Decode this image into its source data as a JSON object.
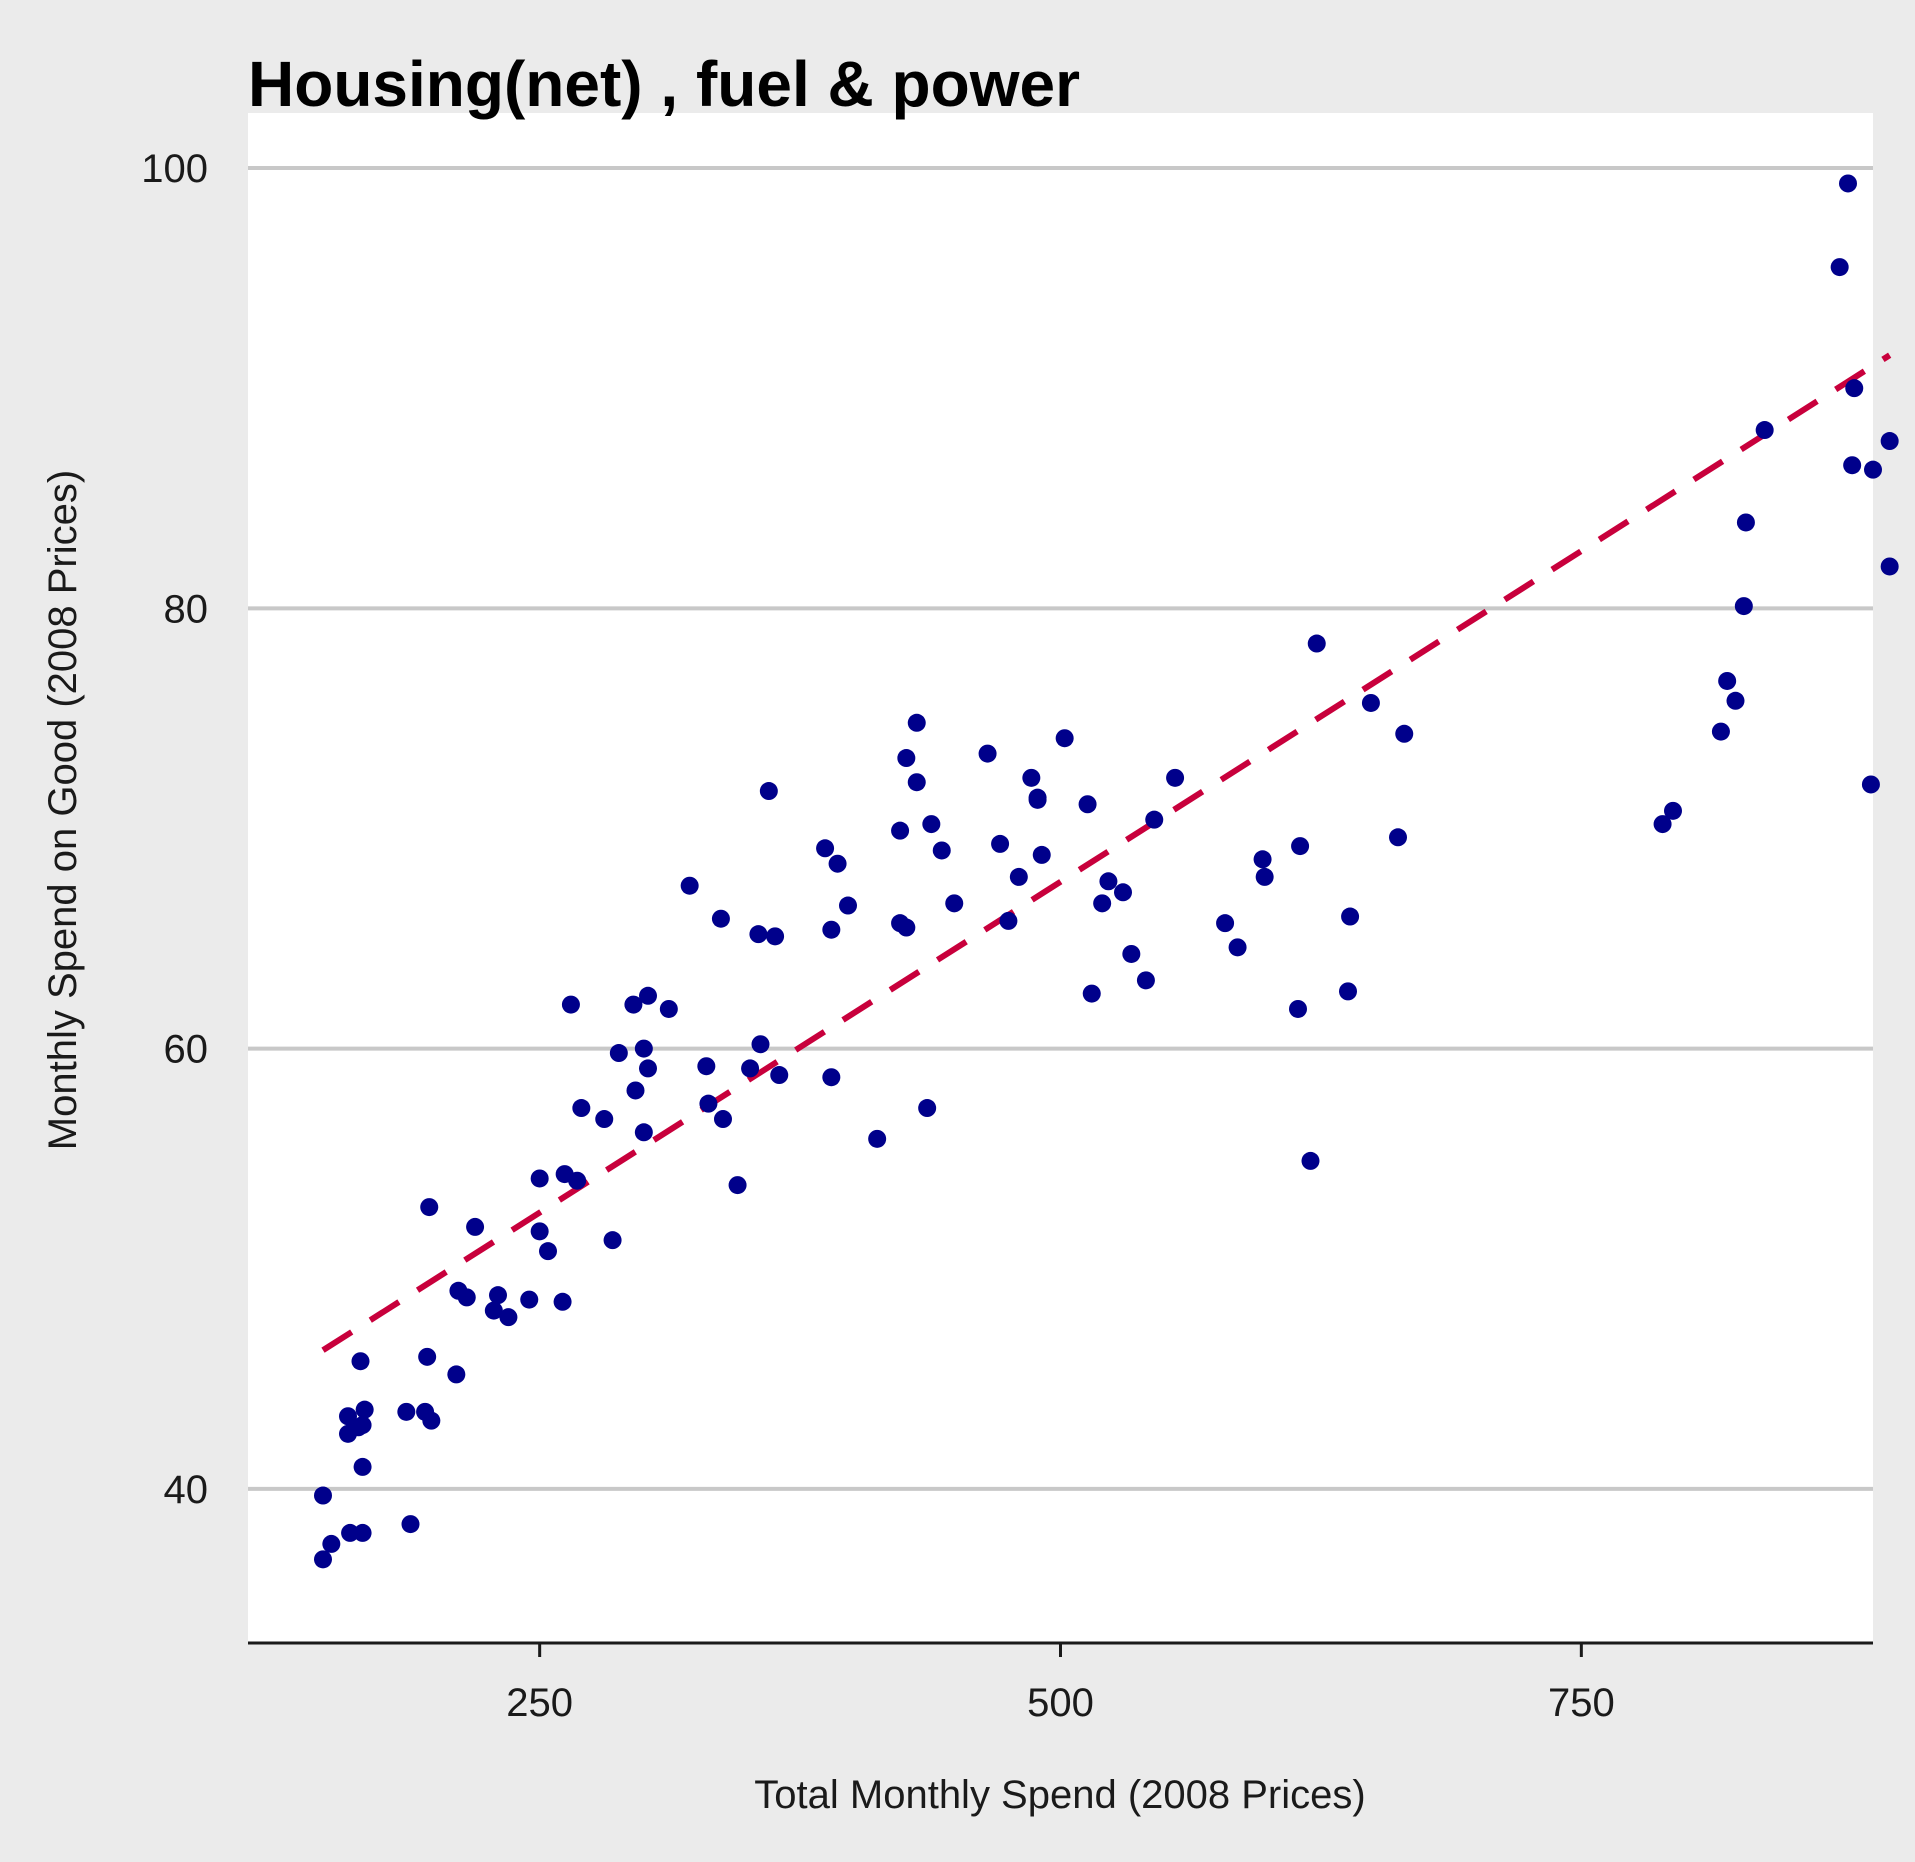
{
  "chart_data": {
    "type": "scatter",
    "title": "Housing(net) , fuel & power",
    "xlabel": "Total Monthly Spend (2008 Prices)",
    "ylabel": "Monthly Spend on Good (2008 Prices)",
    "xlim": [
      110,
      890
    ],
    "ylim": [
      33,
      102.5
    ],
    "x_ticks": [
      250,
      500,
      750
    ],
    "y_ticks": [
      40,
      60,
      80,
      100
    ],
    "x_tick_labels": [
      "250",
      "500",
      "750"
    ],
    "y_tick_labels": [
      "40",
      "60",
      "80",
      "100"
    ],
    "grid": "horizontal",
    "legend": "none",
    "colors": {
      "points": "#00008b",
      "trend": "#c8003c",
      "panel": "#ffffff",
      "background": "#ebebeb",
      "grid": "#c8c8c8"
    },
    "series": [
      {
        "type": "scatter",
        "x": [
          146,
          150,
          146,
          159,
          165,
          158,
          165,
          158,
          163,
          166,
          164,
          165,
          188,
          186,
          196,
          195,
          198,
          197,
          210,
          211,
          215,
          219,
          228,
          230,
          235,
          245,
          250,
          250,
          254,
          261,
          265,
          262,
          270,
          268,
          281,
          285,
          288,
          296,
          295,
          300,
          300,
          302,
          302,
          312,
          322,
          330,
          331,
          338,
          337,
          345,
          351,
          356,
          355,
          360,
          363,
          365,
          387,
          390,
          393,
          390,
          398,
          412,
          423,
          423,
          426,
          431,
          426,
          436,
          431,
          438,
          443,
          449,
          465,
          471,
          475,
          480,
          486,
          491,
          489,
          489,
          502,
          513,
          515,
          520,
          523,
          530,
          534,
          541,
          545,
          555,
          579,
          585,
          598,
          597,
          614,
          615,
          620,
          623,
          638,
          639,
          649,
          665,
          662,
          789,
          794,
          817,
          820,
          824,
          828,
          829,
          838,
          880,
          881,
          889,
          898
        ],
        "y": [
          36.8,
          37.5,
          39.7,
          38.0,
          38.0,
          42.5,
          41.0,
          43.3,
          42.8,
          43.6,
          45.8,
          42.9,
          38.4,
          43.5,
          46.0,
          43.5,
          43.1,
          52.8,
          45.2,
          49.0,
          48.7,
          51.9,
          48.1,
          48.8,
          47.8,
          48.6,
          54.1,
          51.7,
          50.8,
          48.5,
          62.0,
          54.3,
          57.3,
          54.0,
          56.8,
          51.3,
          59.8,
          58.1,
          62.0,
          56.2,
          60.0,
          59.1,
          62.4,
          61.8,
          67.4,
          59.2,
          57.5,
          56.8,
          65.9,
          53.8,
          59.1,
          60.2,
          65.2,
          71.7,
          65.1,
          58.8,
          69.1,
          65.4,
          68.4,
          58.7,
          66.5,
          55.9,
          69.9,
          65.7,
          65.5,
          72.1,
          73.2,
          57.3,
          74.8,
          70.2,
          69.0,
          66.6,
          73.4,
          69.3,
          65.8,
          67.8,
          72.3,
          68.8,
          71.4,
          71.3,
          74.1,
          71.1,
          62.5,
          66.6,
          67.6,
          67.1,
          64.3,
          63.1,
          70.4,
          72.3,
          65.7,
          64.6,
          67.8,
          68.6,
          61.8,
          69.2,
          54.9,
          78.4,
          62.6,
          66.0,
          75.7,
          74.3,
          69.6,
          70.2,
          70.8,
          74.4,
          76.7,
          75.8,
          80.1,
          83.9,
          88.1,
          86.5,
          90.0,
          72.0,
          81.9
        ],
        "x_note": "",
        "y_note": ""
      },
      {
        "type": "trend",
        "style": "dashed",
        "x": [
          146,
          898
        ],
        "y": [
          46.3,
          91.5
        ]
      }
    ],
    "extra_points": {
      "x": [
        874,
        878,
        890,
        898
      ],
      "y": [
        95.5,
        99.3,
        86.3,
        87.6
      ]
    }
  }
}
